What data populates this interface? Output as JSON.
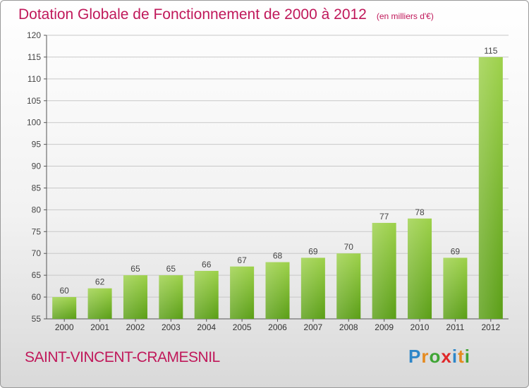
{
  "title": "Dotation Globale de Fonctionnement de 2000 à 2012",
  "subtitle": "(en milliers d'€)",
  "commune": "SAINT-VINCENT-CRAMESNIL",
  "logo": "Proxiti",
  "colors": {
    "title": "#c0185a",
    "bar_top": "#9dd14a",
    "bar_bottom": "#5a9e16",
    "logo_letters": [
      "#2e86c8",
      "#e58a1f",
      "#3fa535",
      "#e0282a",
      "#2e86c8",
      "#e58a1f",
      "#3fa535"
    ]
  },
  "chart_data": {
    "type": "bar",
    "categories": [
      "2000",
      "2001",
      "2002",
      "2003",
      "2004",
      "2005",
      "2006",
      "2007",
      "2008",
      "2009",
      "2010",
      "2011",
      "2012"
    ],
    "values": [
      60,
      62,
      65,
      65,
      66,
      67,
      68,
      69,
      70,
      77,
      78,
      69,
      115
    ],
    "ylim": [
      55,
      120
    ],
    "yticks": [
      55,
      60,
      65,
      70,
      75,
      80,
      85,
      90,
      95,
      100,
      105,
      110,
      115,
      120
    ],
    "grid": true
  }
}
